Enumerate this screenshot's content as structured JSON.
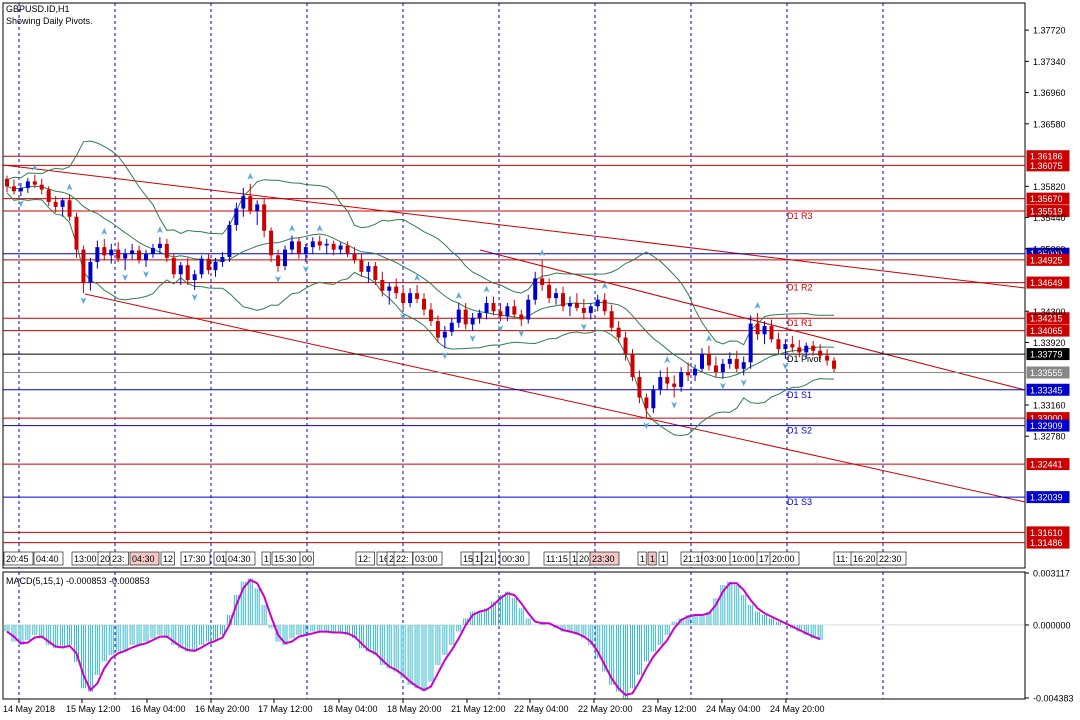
{
  "header": {
    "symbol": "GBPUSD.ID,H1",
    "subtitle": "Showing Daily Pivots."
  },
  "macd_label": "MACD(5,15,1) -0.000853 -0.000853",
  "chart_data": {
    "type": "candlestick",
    "price_axis": {
      "range": [
        1.3142,
        1.3805
      ],
      "ticks": [
        "1.37720",
        "1.37340",
        "1.36960",
        "1.36580",
        "1.35820",
        "1.35440",
        "1.35060",
        "1.34300",
        "1.33920",
        "1.33160",
        "1.32780"
      ]
    },
    "horizontal_levels": [
      {
        "value": 1.36186,
        "label": "1.36186",
        "color": "#cc0000"
      },
      {
        "value": 1.36075,
        "label": "1.36075",
        "color": "#cc0000"
      },
      {
        "value": 1.3567,
        "label": "1.35670",
        "color": "#cc0000"
      },
      {
        "value": 1.35519,
        "label": "1.35519",
        "color": "#cc0000"
      },
      {
        "value": 1.35,
        "label": "1.35000",
        "color": "#0000cc"
      },
      {
        "value": 1.34925,
        "label": "1.34925",
        "color": "#cc0000"
      },
      {
        "value": 1.34649,
        "label": "1.34649",
        "color": "#cc0000"
      },
      {
        "value": 1.34215,
        "label": "1.34215",
        "color": "#cc0000"
      },
      {
        "value": 1.34065,
        "label": "1.34065",
        "color": "#cc0000"
      },
      {
        "value": 1.33779,
        "label": "1.33779",
        "color": "#000000"
      },
      {
        "value": 1.33555,
        "label": "1.33555",
        "color": "#888888"
      },
      {
        "value": 1.33345,
        "label": "1.33345",
        "color": "#0000cc"
      },
      {
        "value": 1.33,
        "label": "1.33000",
        "color": "#cc0000"
      },
      {
        "value": 1.32909,
        "label": "1.32909",
        "color": "#0000cc"
      },
      {
        "value": 1.32441,
        "label": "1.32441",
        "color": "#cc0000"
      },
      {
        "value": 1.32039,
        "label": "1.32039",
        "color": "#0000cc"
      },
      {
        "value": 1.3161,
        "label": "1.31610",
        "color": "#cc0000"
      },
      {
        "value": 1.31486,
        "label": "1.31486",
        "color": "#cc0000"
      }
    ],
    "pivot_labels": [
      {
        "text": "D1 R3",
        "value": 1.35519,
        "color": "#cc0000"
      },
      {
        "text": "D1 R2",
        "value": 1.34649,
        "color": "#cc0000"
      },
      {
        "text": "D1 R1",
        "value": 1.34215,
        "color": "#cc0000"
      },
      {
        "text": "D1 Pivot",
        "value": 1.33779,
        "color": "#000000"
      },
      {
        "text": "D1 S1",
        "value": 1.33345,
        "color": "#0000cc"
      },
      {
        "text": "D1 S2",
        "value": 1.32909,
        "color": "#0000cc"
      },
      {
        "text": "D1 S3",
        "value": 1.32039,
        "color": "#0000cc"
      }
    ],
    "x_axis_labels": [
      "14 May 2018",
      "15 May 12:00",
      "16 May 04:00",
      "16 May 20:00",
      "17 May 12:00",
      "18 May 04:00",
      "18 May 20:00",
      "21 May 12:00",
      "22 May 04:00",
      "22 May 20:00",
      "23 May 12:00",
      "24 May 04:00",
      "24 May 20:00"
    ],
    "time_tags": [
      {
        "text": "20:45",
        "bg": "#ffffff"
      },
      {
        "text": "04:40",
        "bg": "#ffffff"
      },
      {
        "text": "13:00",
        "bg": "#ffffff"
      },
      {
        "text": "20",
        "bg": "#ffffff"
      },
      {
        "text": "23:",
        "bg": "#ffffff"
      },
      {
        "text": "04:30",
        "bg": "#f4c8c8"
      },
      {
        "text": "12",
        "bg": "#ffffff"
      },
      {
        "text": "17:30",
        "bg": "#ffffff"
      },
      {
        "text": "01",
        "bg": "#ffffff"
      },
      {
        "text": "04:30",
        "bg": "#ffffff"
      },
      {
        "text": "1",
        "bg": "#ffffff"
      },
      {
        "text": "15:30",
        "bg": "#ffffff"
      },
      {
        "text": "00",
        "bg": "#ffffff"
      },
      {
        "text": "12:",
        "bg": "#ffffff"
      },
      {
        "text": "16:",
        "bg": "#ffffff"
      },
      {
        "text": "2",
        "bg": "#ffffff"
      },
      {
        "text": "22:",
        "bg": "#ffffff"
      },
      {
        "text": "03:00",
        "bg": "#ffffff"
      },
      {
        "text": "15",
        "bg": "#ffffff"
      },
      {
        "text": "1",
        "bg": "#ffffff"
      },
      {
        "text": "21",
        "bg": "#ffffff"
      },
      {
        "text": "00:30",
        "bg": "#ffffff"
      },
      {
        "text": "11:15",
        "bg": "#ffffff"
      },
      {
        "text": "1",
        "bg": "#ffffff"
      },
      {
        "text": "20",
        "bg": "#ffffff"
      },
      {
        "text": "23:30",
        "bg": "#f4c8c8"
      },
      {
        "text": "1",
        "bg": "#ffffff"
      },
      {
        "text": "1",
        "bg": "#f4c8c8"
      },
      {
        "text": "1",
        "bg": "#ffffff"
      },
      {
        "text": "21:15",
        "bg": "#ffffff"
      },
      {
        "text": "03:00",
        "bg": "#ffffff"
      },
      {
        "text": "10:00",
        "bg": "#ffffff"
      },
      {
        "text": "17",
        "bg": "#ffffff"
      },
      {
        "text": "20:00",
        "bg": "#ffffff"
      },
      {
        "text": "11:",
        "bg": "#ffffff"
      },
      {
        "text": "16:20",
        "bg": "#ffffff"
      },
      {
        "text": "22:30",
        "bg": "#ffffff"
      }
    ],
    "macd_axis": {
      "range": [
        -0.004383,
        0.003117
      ],
      "ticks": [
        "0.003117",
        "0.000000",
        "-0.004383"
      ]
    },
    "colors": {
      "bull": "#0000cc",
      "bear": "#cc0000",
      "band": "#2e7d4f",
      "fractal": "#55aadd",
      "grid": "#0000cc",
      "macd_hist": "#33bbcc",
      "macd_signal": "#cc00cc",
      "trendline": "#cc0000"
    },
    "grid": "dotted vertical",
    "candles": [
      [
        1.3591,
        1.3595,
        1.3575,
        1.3582
      ],
      [
        1.3582,
        1.359,
        1.3572,
        1.3576
      ],
      [
        1.3576,
        1.3586,
        1.357,
        1.358
      ],
      [
        1.358,
        1.3592,
        1.3574,
        1.3588
      ],
      [
        1.3588,
        1.3596,
        1.358,
        1.3584
      ],
      [
        1.3584,
        1.3591,
        1.3572,
        1.3578
      ],
      [
        1.3578,
        1.3582,
        1.3558,
        1.3563
      ],
      [
        1.3563,
        1.357,
        1.355,
        1.3557
      ],
      [
        1.3557,
        1.3568,
        1.3545,
        1.3565
      ],
      [
        1.3565,
        1.3572,
        1.354,
        1.3545
      ],
      [
        1.3545,
        1.355,
        1.3495,
        1.3505
      ],
      [
        1.3505,
        1.351,
        1.3452,
        1.3465
      ],
      [
        1.3465,
        1.3495,
        1.3455,
        1.349
      ],
      [
        1.349,
        1.3516,
        1.3482,
        1.3508
      ],
      [
        1.3508,
        1.3518,
        1.3492,
        1.3498
      ],
      [
        1.3498,
        1.3512,
        1.3488,
        1.3505
      ],
      [
        1.3505,
        1.3514,
        1.349,
        1.3494
      ],
      [
        1.3494,
        1.3506,
        1.348,
        1.35
      ],
      [
        1.35,
        1.3512,
        1.3493,
        1.3504
      ],
      [
        1.3504,
        1.351,
        1.3488,
        1.3492
      ],
      [
        1.3492,
        1.3505,
        1.3484,
        1.35
      ],
      [
        1.35,
        1.3512,
        1.3495,
        1.3507
      ],
      [
        1.3507,
        1.352,
        1.35,
        1.3512
      ],
      [
        1.3512,
        1.3518,
        1.349,
        1.3495
      ],
      [
        1.3495,
        1.35,
        1.347,
        1.3475
      ],
      [
        1.3475,
        1.349,
        1.3462,
        1.3486
      ],
      [
        1.3486,
        1.3495,
        1.3462,
        1.3468
      ],
      [
        1.3468,
        1.348,
        1.3456,
        1.3475
      ],
      [
        1.3475,
        1.3498,
        1.347,
        1.3494
      ],
      [
        1.3494,
        1.35,
        1.3475,
        1.348
      ],
      [
        1.348,
        1.3495,
        1.3472,
        1.349
      ],
      [
        1.349,
        1.3502,
        1.3484,
        1.3496
      ],
      [
        1.3496,
        1.354,
        1.349,
        1.3535
      ],
      [
        1.3535,
        1.3562,
        1.3528,
        1.3555
      ],
      [
        1.3555,
        1.358,
        1.3545,
        1.357
      ],
      [
        1.357,
        1.3585,
        1.3548,
        1.3552
      ],
      [
        1.3552,
        1.3565,
        1.3535,
        1.356
      ],
      [
        1.356,
        1.3568,
        1.352,
        1.3528
      ],
      [
        1.3528,
        1.3532,
        1.349,
        1.3498
      ],
      [
        1.3498,
        1.3505,
        1.3478,
        1.3485
      ],
      [
        1.3485,
        1.351,
        1.348,
        1.3505
      ],
      [
        1.3505,
        1.3522,
        1.35,
        1.3515
      ],
      [
        1.3515,
        1.352,
        1.3494,
        1.35
      ],
      [
        1.35,
        1.3512,
        1.349,
        1.3508
      ],
      [
        1.3508,
        1.352,
        1.35,
        1.3515
      ],
      [
        1.3515,
        1.3522,
        1.3504,
        1.351
      ],
      [
        1.351,
        1.3518,
        1.35,
        1.3512
      ],
      [
        1.3512,
        1.3516,
        1.3498,
        1.3505
      ],
      [
        1.3505,
        1.3514,
        1.35,
        1.351
      ],
      [
        1.351,
        1.3515,
        1.3496,
        1.35
      ],
      [
        1.35,
        1.3508,
        1.3488,
        1.3492
      ],
      [
        1.3492,
        1.35,
        1.3472,
        1.3478
      ],
      [
        1.3478,
        1.349,
        1.3465,
        1.3485
      ],
      [
        1.3485,
        1.349,
        1.3462,
        1.3468
      ],
      [
        1.3468,
        1.3478,
        1.3448,
        1.3455
      ],
      [
        1.3455,
        1.3465,
        1.3438,
        1.346
      ],
      [
        1.346,
        1.347,
        1.3445,
        1.3452
      ],
      [
        1.3452,
        1.346,
        1.3432,
        1.344
      ],
      [
        1.344,
        1.3458,
        1.3435,
        1.3452
      ],
      [
        1.3452,
        1.3462,
        1.344,
        1.3445
      ],
      [
        1.3445,
        1.3452,
        1.3425,
        1.3432
      ],
      [
        1.3432,
        1.344,
        1.3412,
        1.3418
      ],
      [
        1.3418,
        1.3425,
        1.3392,
        1.3398
      ],
      [
        1.3398,
        1.3412,
        1.3385,
        1.3405
      ],
      [
        1.3405,
        1.3422,
        1.34,
        1.3416
      ],
      [
        1.3416,
        1.344,
        1.341,
        1.3432
      ],
      [
        1.3432,
        1.344,
        1.3408,
        1.3414
      ],
      [
        1.3414,
        1.3428,
        1.3406,
        1.3422
      ],
      [
        1.3422,
        1.3432,
        1.3415,
        1.3428
      ],
      [
        1.3428,
        1.3448,
        1.342,
        1.344
      ],
      [
        1.344,
        1.3448,
        1.3425,
        1.343
      ],
      [
        1.343,
        1.344,
        1.3418,
        1.3424
      ],
      [
        1.3424,
        1.344,
        1.3418,
        1.3436
      ],
      [
        1.3436,
        1.3444,
        1.3422,
        1.3426
      ],
      [
        1.3426,
        1.3432,
        1.3412,
        1.342
      ],
      [
        1.342,
        1.345,
        1.3415,
        1.3444
      ],
      [
        1.3444,
        1.3478,
        1.3438,
        1.347
      ],
      [
        1.347,
        1.3492,
        1.3455,
        1.3462
      ],
      [
        1.3462,
        1.347,
        1.344,
        1.3446
      ],
      [
        1.3446,
        1.3458,
        1.3438,
        1.3452
      ],
      [
        1.3452,
        1.346,
        1.343,
        1.3436
      ],
      [
        1.3436,
        1.3448,
        1.3424,
        1.344
      ],
      [
        1.344,
        1.3452,
        1.343,
        1.3434
      ],
      [
        1.3434,
        1.3445,
        1.342,
        1.3428
      ],
      [
        1.3428,
        1.344,
        1.342,
        1.3436
      ],
      [
        1.3436,
        1.345,
        1.343,
        1.3444
      ],
      [
        1.3444,
        1.3452,
        1.3425,
        1.343
      ],
      [
        1.343,
        1.3438,
        1.3405,
        1.341
      ],
      [
        1.341,
        1.3418,
        1.3392,
        1.3398
      ],
      [
        1.3398,
        1.3405,
        1.337,
        1.3378
      ],
      [
        1.3378,
        1.3384,
        1.3345,
        1.335
      ],
      [
        1.335,
        1.3358,
        1.3318,
        1.3325
      ],
      [
        1.3325,
        1.333,
        1.33,
        1.3312
      ],
      [
        1.3312,
        1.334,
        1.3306,
        1.3335
      ],
      [
        1.3335,
        1.3358,
        1.3328,
        1.335
      ],
      [
        1.335,
        1.3362,
        1.3335,
        1.3342
      ],
      [
        1.3342,
        1.3352,
        1.3325,
        1.3338
      ],
      [
        1.3338,
        1.3362,
        1.3332,
        1.3356
      ],
      [
        1.3356,
        1.3368,
        1.3345,
        1.3352
      ],
      [
        1.3352,
        1.3365,
        1.3345,
        1.336
      ],
      [
        1.336,
        1.3385,
        1.3356,
        1.3378
      ],
      [
        1.3378,
        1.3388,
        1.3358,
        1.3364
      ],
      [
        1.3364,
        1.3375,
        1.335,
        1.3356
      ],
      [
        1.3356,
        1.3372,
        1.3348,
        1.3366
      ],
      [
        1.3366,
        1.338,
        1.336,
        1.3372
      ],
      [
        1.3372,
        1.3382,
        1.3356,
        1.336
      ],
      [
        1.336,
        1.3375,
        1.3352,
        1.3368
      ],
      [
        1.3368,
        1.3425,
        1.336,
        1.3415
      ],
      [
        1.3415,
        1.3428,
        1.3395,
        1.3402
      ],
      [
        1.3402,
        1.3418,
        1.339,
        1.3412
      ],
      [
        1.3412,
        1.342,
        1.3392,
        1.3396
      ],
      [
        1.3396,
        1.3404,
        1.3378,
        1.3384
      ],
      [
        1.3384,
        1.3396,
        1.3372,
        1.339
      ],
      [
        1.339,
        1.34,
        1.338,
        1.3386
      ],
      [
        1.3386,
        1.3395,
        1.3374,
        1.338
      ],
      [
        1.338,
        1.3392,
        1.3372,
        1.3388
      ],
      [
        1.3388,
        1.3394,
        1.3376,
        1.3382
      ],
      [
        1.3382,
        1.339,
        1.337,
        1.3376
      ],
      [
        1.3376,
        1.3384,
        1.3364,
        1.337
      ],
      [
        1.337,
        1.3374,
        1.3356,
        1.336
      ]
    ],
    "macd": [
      -0.0004,
      -0.001,
      -0.0012,
      -0.0009,
      -0.0006,
      -0.0008,
      -0.0012,
      -0.0014,
      -0.0013,
      -0.0012,
      -0.0022,
      -0.0038,
      -0.004,
      -0.003,
      -0.0022,
      -0.0018,
      -0.0016,
      -0.0015,
      -0.0012,
      -0.0012,
      -0.001,
      -0.0008,
      -0.0006,
      -0.0008,
      -0.0012,
      -0.0014,
      -0.0016,
      -0.0015,
      -0.0012,
      -0.001,
      -0.0009,
      -0.0006,
      0.0006,
      0.0018,
      0.0026,
      0.0028,
      0.0022,
      0.0012,
      -0.0002,
      -0.001,
      -0.0012,
      -0.0008,
      -0.0006,
      -0.0006,
      -0.0004,
      -0.0004,
      -0.0004,
      -0.0005,
      -0.0004,
      -0.0006,
      -0.0008,
      -0.0014,
      -0.0016,
      -0.0018,
      -0.0024,
      -0.0026,
      -0.0028,
      -0.0032,
      -0.0036,
      -0.0038,
      -0.004,
      -0.0034,
      -0.0024,
      -0.0018,
      -0.0012,
      -0.0004,
      0.0004,
      0.0008,
      0.0008,
      0.001,
      0.0014,
      0.0018,
      0.002,
      0.0016,
      0.001,
      0.0004,
      0.0,
      0.0002,
      0.0,
      -0.0002,
      -0.0004,
      -0.0004,
      -0.0006,
      -0.0008,
      -0.0012,
      -0.002,
      -0.0028,
      -0.0036,
      -0.004,
      -0.0044,
      -0.0038,
      -0.003,
      -0.0022,
      -0.0016,
      -0.0012,
      -0.0006,
      0.0002,
      0.0004,
      0.0006,
      0.0006,
      0.0006,
      0.0008,
      0.0016,
      0.0024,
      0.0026,
      0.0024,
      0.0018,
      0.0012,
      0.0008,
      0.0006,
      0.0004,
      0.0002,
      0.0,
      -0.0002,
      -0.0004,
      -0.0006,
      -0.0008,
      -0.0009
    ]
  }
}
